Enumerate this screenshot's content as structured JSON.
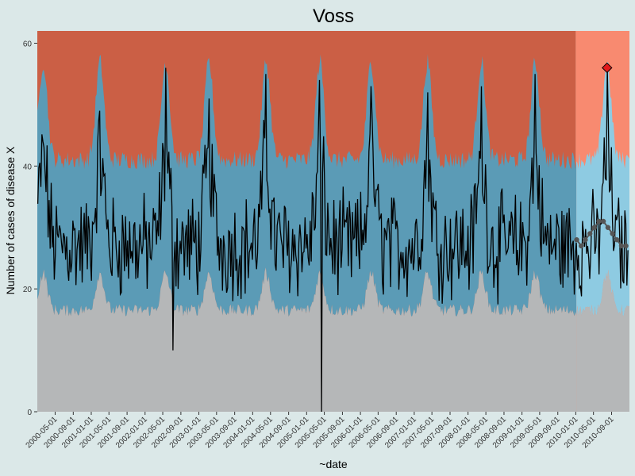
{
  "chart_data": {
    "type": "area",
    "title": "Voss",
    "xlabel": "~date",
    "ylabel": "Number of cases of disease X",
    "x_range": [
      "2000-01-01",
      "2010-12-31"
    ],
    "ylim": [
      0,
      62
    ],
    "y_ticks": [
      0,
      20,
      40,
      60
    ],
    "x_ticks": [
      "2000-05-01",
      "2000-09-01",
      "2001-01-01",
      "2001-05-01",
      "2001-09-01",
      "2002-01-01",
      "2002-05-01",
      "2002-09-01",
      "2003-01-01",
      "2003-05-01",
      "2003-09-01",
      "2004-01-01",
      "2004-05-01",
      "2004-09-01",
      "2005-01-01",
      "2005-05-01",
      "2005-09-01",
      "2006-01-01",
      "2006-05-01",
      "2006-09-01",
      "2007-01-01",
      "2007-05-01",
      "2007-09-01",
      "2008-01-01",
      "2008-05-01",
      "2008-09-01",
      "2009-01-01",
      "2009-05-01",
      "2009-09-01",
      "2010-01-01",
      "2010-05-01",
      "2010-09-01"
    ],
    "grid": false,
    "forecast_start": "2010-01-01",
    "series": [
      {
        "role": "observed",
        "weekly_peaks": [
          {
            "date": "2000-02-10",
            "value": 44
          },
          {
            "date": "2001-03-01",
            "value": 49
          },
          {
            "date": "2002-05-20",
            "value": 56
          },
          {
            "date": "2003-03-10",
            "value": 51
          },
          {
            "date": "2004-04-01",
            "value": 55
          },
          {
            "date": "2005-04-01",
            "value": 54
          },
          {
            "date": "2006-03-15",
            "value": 53
          },
          {
            "date": "2007-04-01",
            "value": 52
          },
          {
            "date": "2008-04-01",
            "value": 53
          },
          {
            "date": "2009-04-01",
            "value": 55
          },
          {
            "date": "2010-08-01",
            "value": 56
          }
        ],
        "notable_troughs": [
          {
            "date": "2002-07-10",
            "value": 10
          },
          {
            "date": "2005-04-12",
            "value": 0
          }
        ],
        "baseline_range": [
          15,
          45
        ]
      },
      {
        "role": "forecast_median",
        "points": [
          {
            "date": "2010-01-07",
            "value": 28
          },
          {
            "date": "2010-02-07",
            "value": 27
          },
          {
            "date": "2010-03-07",
            "value": 28
          },
          {
            "date": "2010-04-07",
            "value": 29
          },
          {
            "date": "2010-05-07",
            "value": 30
          },
          {
            "date": "2010-06-07",
            "value": 31
          },
          {
            "date": "2010-07-07",
            "value": 31
          },
          {
            "date": "2010-08-07",
            "value": 30
          },
          {
            "date": "2010-09-07",
            "value": 29
          },
          {
            "date": "2010-10-07",
            "value": 28
          },
          {
            "date": "2010-11-07",
            "value": 27
          },
          {
            "date": "2010-12-07",
            "value": 27
          }
        ]
      }
    ],
    "highlighted_point": {
      "date": "2010-08-01",
      "value": 56
    },
    "colors": {
      "page_background": "#dbe8e8",
      "history_upper": "#cb5f45",
      "forecast_upper": "#f88a70",
      "history_band": "#5b9bb6",
      "forecast_band": "#8ecbe2",
      "lower_region": "#b5b7b8",
      "observed_line": "#000000",
      "forecast_line": "#555555",
      "highlight_marker": "#e31a1c"
    }
  }
}
